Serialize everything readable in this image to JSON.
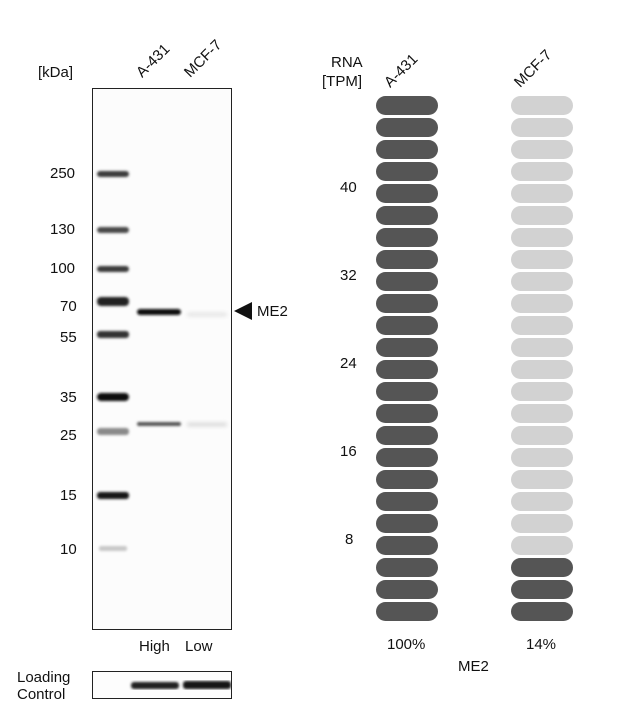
{
  "western_blot": {
    "unit_label": "[kDa]",
    "lanes": [
      "A-431",
      "MCF-7"
    ],
    "lane_levels": [
      "High",
      "Low"
    ],
    "markers": [
      "250",
      "130",
      "100",
      "70",
      "55",
      "35",
      "25",
      "15",
      "10"
    ],
    "target_label": "ME2",
    "loading_control_label": [
      "Loading",
      "Control"
    ]
  },
  "rna_panel": {
    "axis_title": [
      "RNA",
      "[TPM]"
    ],
    "ticks": [
      "40",
      "32",
      "24",
      "16",
      "8"
    ],
    "gene": "ME2",
    "colors": {
      "filled": "#555555",
      "empty": "#d2d2d2"
    },
    "columns": [
      {
        "cell_line": "A-431",
        "percent": "100%",
        "filled_fraction": 1.0
      },
      {
        "cell_line": "MCF-7",
        "percent": "14%",
        "filled_fraction": 0.14
      }
    ]
  }
}
